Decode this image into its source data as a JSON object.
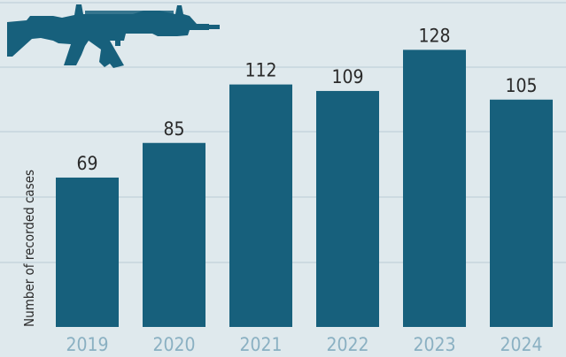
{
  "chart_data": {
    "type": "bar",
    "categories": [
      "2019",
      "2020",
      "2021",
      "2022",
      "2023",
      "2024"
    ],
    "values": [
      69,
      85,
      112,
      109,
      128,
      105
    ],
    "title": "",
    "xlabel": "",
    "ylabel": "Number of recorded cases",
    "ylim": [
      0,
      150
    ],
    "grid": true,
    "legend": "none",
    "data_labels": [
      "69",
      "85",
      "112",
      "109",
      "128",
      "105"
    ]
  },
  "colors": {
    "background": "#dfe9ed",
    "bar": "#17607c",
    "gridline": "#b9ccd5",
    "tick_label": "#8ab0c2",
    "decoration": "#17607c"
  },
  "decoration": {
    "icon": "rifle-icon"
  }
}
